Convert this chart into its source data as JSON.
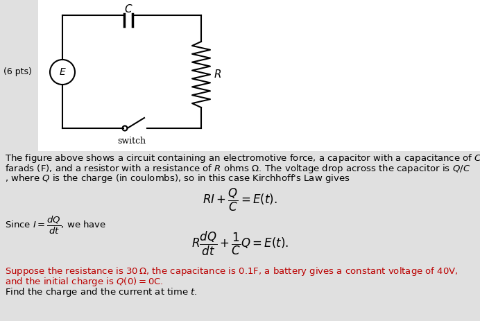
{
  "bg_color": "#e0e0e0",
  "white_box_color": "#ffffff",
  "text_color_black": "#000000",
  "text_color_red": "#bb0000",
  "pts_text": "(6 pts)",
  "fig_width": 6.92,
  "fig_height": 4.63,
  "dpi": 100
}
